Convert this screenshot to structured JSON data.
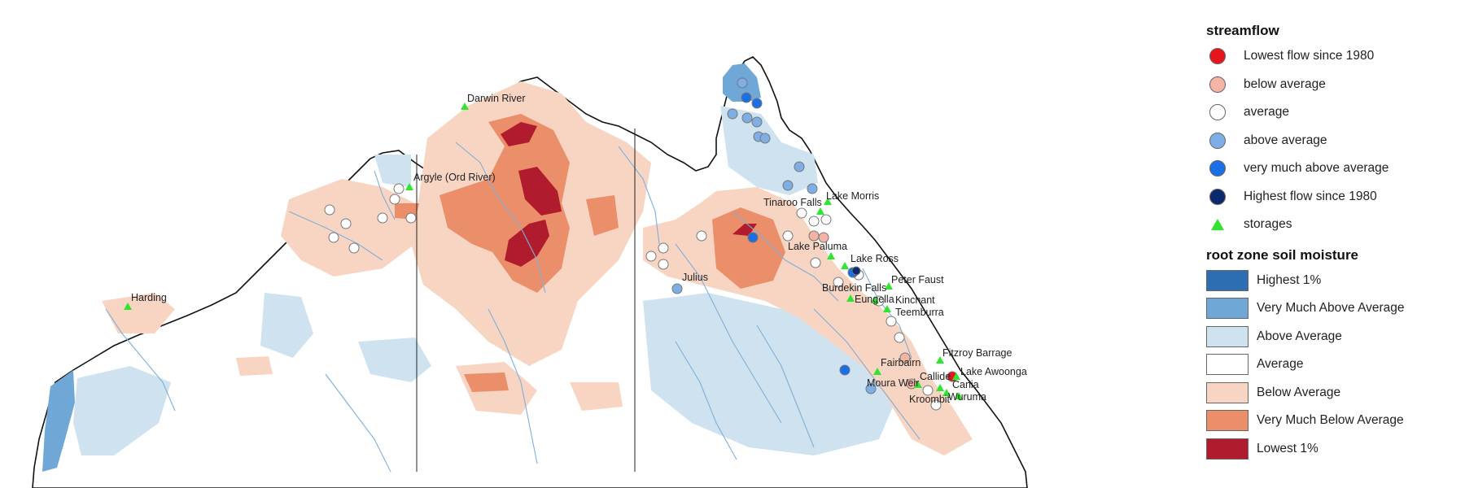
{
  "legend": {
    "streamflow_title": "streamflow",
    "streamflow_items": [
      {
        "label": "Lowest flow since 1980",
        "icon": "red-circle-icon",
        "color": "#e8141c"
      },
      {
        "label": "below average",
        "icon": "pink-circle-icon",
        "color": "#f4b4a4"
      },
      {
        "label": "average",
        "icon": "white-circle-icon",
        "color": "#ffffff"
      },
      {
        "label": "above average",
        "icon": "light-blue-circle-icon",
        "color": "#7eaee6"
      },
      {
        "label": "very much above average",
        "icon": "blue-circle-icon",
        "color": "#1a6fe6"
      },
      {
        "label": "Highest flow since 1980",
        "icon": "navy-circle-icon",
        "color": "#0a2a6c"
      },
      {
        "label": "storages",
        "icon": "green-triangle-icon",
        "color": "#2ee62e"
      }
    ],
    "soil_title": "root zone soil moisture",
    "soil_items": [
      {
        "label": "Highest 1%",
        "color": "#2b6fb2"
      },
      {
        "label": "Very Much Above Average",
        "color": "#6fa7d6"
      },
      {
        "label": "Above Average",
        "color": "#cfe2ef"
      },
      {
        "label": "Average",
        "color": "#ffffff"
      },
      {
        "label": "Below Average",
        "color": "#f8d4c2"
      },
      {
        "label": "Very Much Below Average",
        "color": "#eb8f6a"
      },
      {
        "label": "Lowest 1%",
        "color": "#b01c2e"
      }
    ]
  },
  "map_labels": {
    "darwin_river": "Darwin River",
    "argyle": "Argyle (Ord River)",
    "harding": "Harding",
    "julius": "Julius",
    "tinaroo_falls": "Tinaroo Falls",
    "lake_morris": "Lake Morris",
    "lake_paluma": "Lake Paluma",
    "lake_ross": "Lake Ross",
    "peter_faust": "Peter Faust",
    "burdekin_falls": "Burdekin Falls",
    "eungella": "Eungella",
    "kinchant": "Kinchant",
    "teemburra": "Teemburra",
    "fitzroy_barrage": "Fitzroy Barrage",
    "fairbairn": "Fairbairn",
    "lake_awoonga": "Lake Awoonga",
    "moura_weir": "Moura Weir",
    "callide": "Callide",
    "cania": "Cania",
    "kroombit": "Kroombit",
    "wuruma": "Wuruma"
  },
  "colors": {
    "land": "#ffffff",
    "coast": "#111111",
    "river": "#7fb0d8",
    "border": "#222222"
  }
}
